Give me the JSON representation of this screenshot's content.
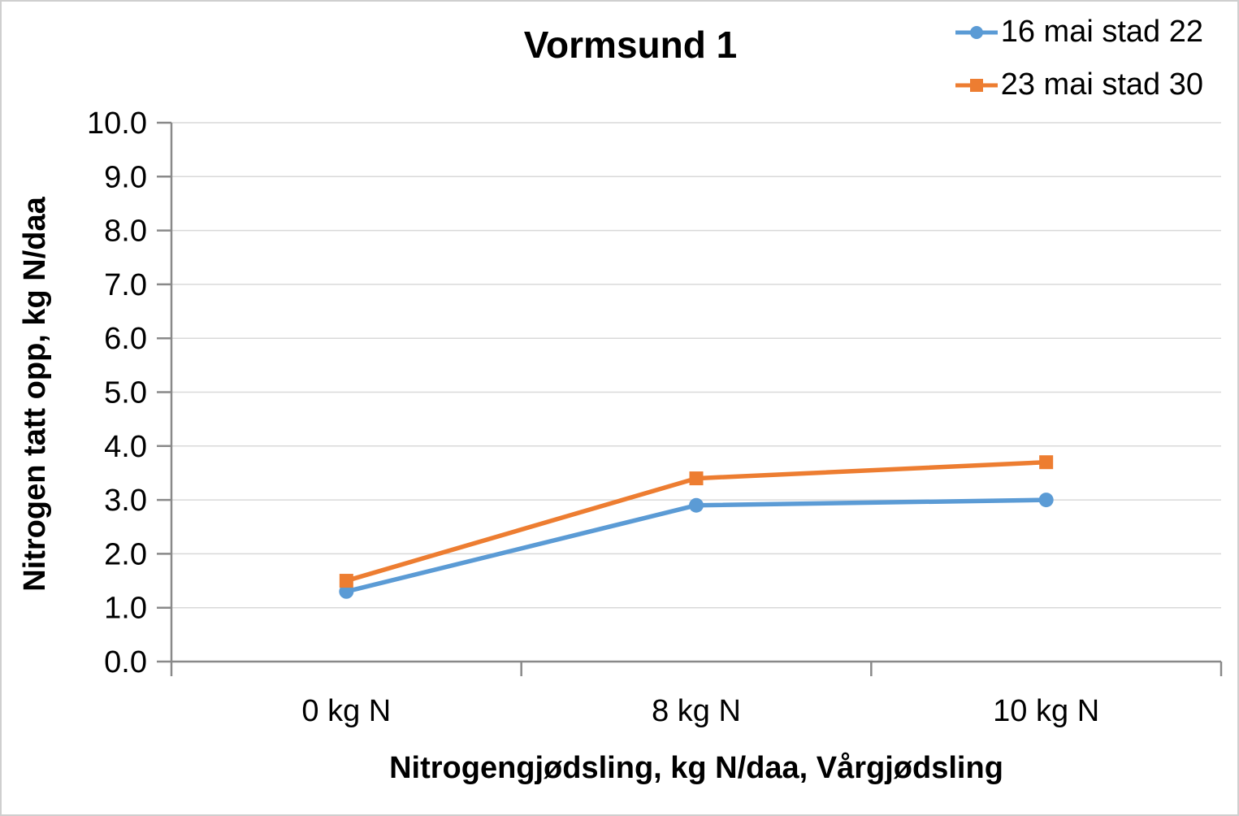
{
  "chart_data": {
    "type": "line",
    "title": "Vormsund 1",
    "categories": [
      "0 kg N",
      "8 kg N",
      "10 kg N"
    ],
    "series": [
      {
        "name": "16 mai stad 22",
        "values": [
          1.3,
          2.9,
          3.0
        ],
        "color": "#5B9BD5",
        "marker": "circle"
      },
      {
        "name": "23 mai stad 30",
        "values": [
          1.5,
          3.4,
          3.7
        ],
        "color": "#ED7D31",
        "marker": "square"
      }
    ],
    "xlabel": "Nitrogengjødsling, kg N/daa, Vårgjødsling",
    "ylabel": "Nitrogen tatt opp, kg N/daa",
    "ylim": [
      0,
      10
    ],
    "ytick_step": 1.0,
    "ytick_decimals": 1,
    "grid": true,
    "legend_position": "top-right",
    "colors": {
      "gridline": "#D9D9D9",
      "axis": "#898989",
      "text": "#000000",
      "background": "#FFFFFF"
    }
  }
}
